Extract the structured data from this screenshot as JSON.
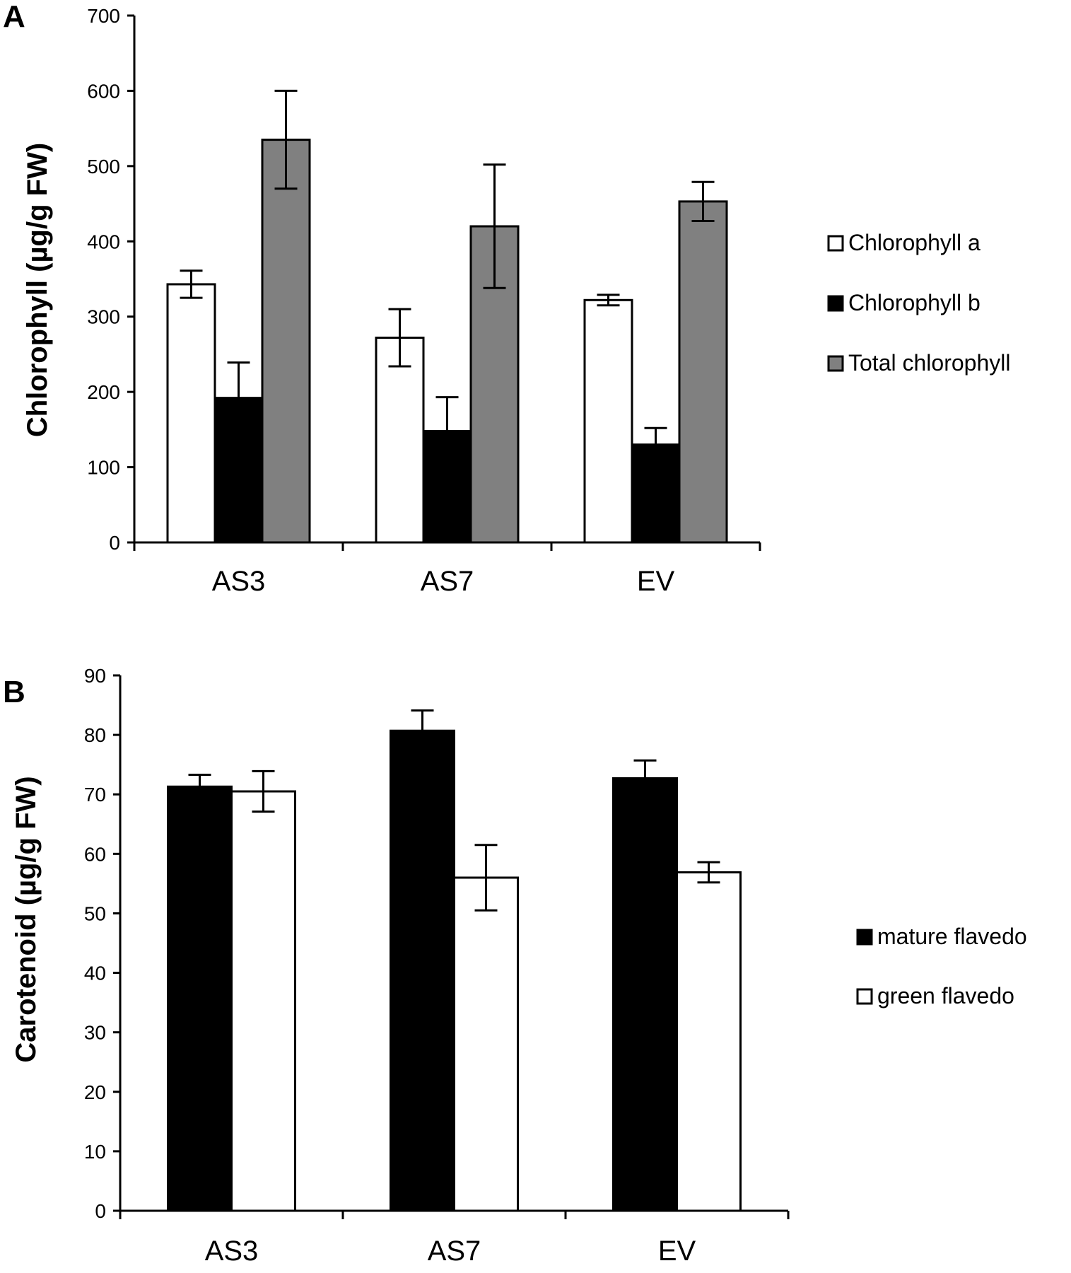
{
  "chart_data": [
    {
      "panel": "A",
      "type": "bar",
      "categories": [
        "AS3",
        "AS7",
        "EV"
      ],
      "ylabel": "Chlorophyll  (µg/g FW)",
      "ylim": [
        0,
        700
      ],
      "yticks": [
        0,
        100,
        200,
        300,
        400,
        500,
        600,
        700
      ],
      "grid": false,
      "legend_position": "right",
      "series": [
        {
          "name": "Chlorophyll a",
          "color": "#ffffff",
          "values": [
            343,
            272,
            322
          ],
          "errors": [
            18,
            38,
            7
          ]
        },
        {
          "name": "Chlorophyll b",
          "color": "#000000",
          "values": [
            192,
            148,
            130
          ],
          "errors": [
            47,
            45,
            22
          ]
        },
        {
          "name": "Total chlorophyll",
          "color": "#808080",
          "values": [
            535,
            420,
            453
          ],
          "errors": [
            65,
            82,
            26
          ]
        }
      ]
    },
    {
      "panel": "B",
      "type": "bar",
      "categories": [
        "AS3",
        "AS7",
        "EV"
      ],
      "ylabel": "Carotenoid (µg/g FW)",
      "ylim": [
        0,
        90
      ],
      "yticks": [
        0,
        10,
        20,
        30,
        40,
        50,
        60,
        70,
        80,
        90
      ],
      "grid": false,
      "legend_position": "right",
      "series": [
        {
          "name": "mature flavedo",
          "color": "#000000",
          "values": [
            71.3,
            80.7,
            72.7
          ],
          "errors": [
            2.0,
            3.4,
            3.0
          ]
        },
        {
          "name": "green flavedo",
          "color": "#ffffff",
          "values": [
            70.5,
            56.0,
            56.9
          ],
          "errors": [
            3.4,
            5.5,
            1.7
          ]
        }
      ]
    }
  ]
}
